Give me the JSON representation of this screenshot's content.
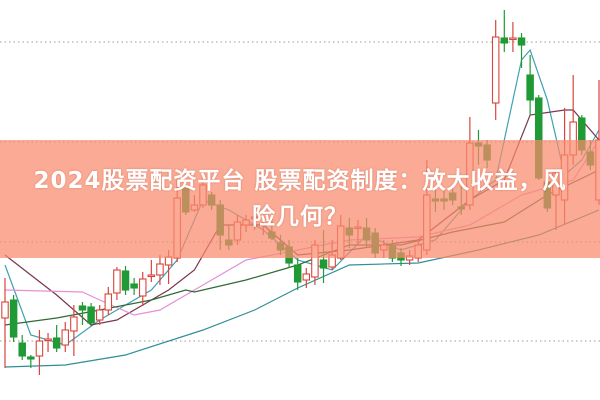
{
  "title": "2024股票配资平台 股票配资制度：放大收益，风险几何？",
  "title_lines": [
    "2024股票配资平台 股票配资制度：放大收益，风",
    "险几何？"
  ],
  "colors": {
    "up": "#d9443c",
    "down": "#1f9a35",
    "banner": "#f98a6c",
    "grid": "#9a9a9a"
  },
  "chart_data": {
    "type": "candlestick",
    "grid": "dotted-horizontal",
    "axes_visible": false,
    "ylim": [
      0,
      40
    ],
    "candles_ohlc": [
      [
        8.2,
        12.2,
        3.2,
        9.8
      ],
      [
        10.0,
        10.5,
        5.8,
        6.3
      ],
      [
        5.7,
        6.5,
        4.0,
        4.4
      ],
      [
        4.3,
        4.5,
        3.2,
        4.1
      ],
      [
        4.4,
        7.0,
        2.5,
        5.9
      ],
      [
        6.1,
        6.7,
        4.8,
        6.1
      ],
      [
        6.2,
        7.5,
        4.8,
        5.2
      ],
      [
        5.5,
        7.8,
        4.8,
        7.0
      ],
      [
        6.9,
        9.5,
        4.4,
        8.3
      ],
      [
        9.4,
        9.8,
        7.5,
        9.0
      ],
      [
        9.3,
        9.7,
        7.4,
        7.7
      ],
      [
        8.0,
        9.5,
        7.5,
        9.0
      ],
      [
        9.0,
        11.3,
        8.5,
        10.6
      ],
      [
        10.7,
        13.3,
        10.0,
        13.0
      ],
      [
        12.9,
        13.4,
        10.5,
        11.0
      ],
      [
        11.6,
        12.2,
        10.5,
        11.2
      ],
      [
        10.4,
        12.8,
        9.4,
        12.1
      ],
      [
        12.4,
        14.0,
        11.8,
        12.5
      ],
      [
        12.5,
        14.5,
        11.5,
        13.6
      ],
      [
        13.5,
        15.0,
        11.6,
        14.3
      ],
      [
        14.2,
        22.2,
        13.8,
        20.2
      ],
      [
        21.2,
        22.0,
        18.5,
        18.8
      ],
      [
        19.0,
        20.5,
        18.8,
        19.5
      ],
      [
        19.5,
        22.2,
        19.2,
        21.5
      ],
      [
        20.5,
        20.8,
        19.0,
        19.5
      ],
      [
        19.5,
        20.0,
        15.0,
        16.5
      ],
      [
        16.0,
        17.5,
        15.0,
        15.5
      ],
      [
        16.0,
        18.5,
        15.5,
        17.8
      ],
      [
        17.5,
        18.5,
        16.8,
        18.0
      ],
      [
        18.2,
        19.0,
        17.0,
        18.3
      ],
      [
        17.5,
        18.5,
        16.5,
        17.6
      ],
      [
        16.8,
        18.5,
        16.0,
        16.2
      ],
      [
        15.7,
        16.5,
        14.5,
        15.0
      ],
      [
        15.3,
        16.0,
        13.2,
        13.7
      ],
      [
        13.5,
        14.2,
        11.0,
        11.8
      ],
      [
        12.0,
        13.2,
        11.2,
        12.6
      ],
      [
        12.3,
        16.0,
        11.5,
        15.5
      ],
      [
        14.0,
        17.0,
        11.7,
        13.2
      ],
      [
        13.3,
        16.0,
        13.0,
        14.5
      ],
      [
        14.2,
        18.5,
        14.0,
        17.4
      ],
      [
        17.2,
        18.2,
        15.2,
        16.5
      ],
      [
        17.3,
        18.0,
        15.5,
        17.3
      ],
      [
        17.2,
        18.2,
        15.2,
        16.0
      ],
      [
        16.7,
        17.2,
        14.2,
        14.7
      ],
      [
        15.0,
        16.0,
        14.2,
        15.5
      ],
      [
        15.5,
        16.0,
        13.8,
        14.2
      ],
      [
        14.7,
        15.2,
        13.4,
        14.0
      ],
      [
        14.0,
        15.0,
        13.5,
        14.4
      ],
      [
        14.2,
        16.0,
        13.8,
        15.5
      ],
      [
        15.0,
        24.0,
        14.5,
        20.5
      ],
      [
        20.1,
        21.2,
        18.8,
        19.9
      ],
      [
        20.1,
        21.0,
        19.0,
        19.9
      ],
      [
        20.7,
        21.5,
        19.5,
        20.0
      ],
      [
        19.3,
        22.0,
        18.5,
        19.1
      ],
      [
        19.5,
        28.3,
        19.0,
        25.7
      ],
      [
        25.7,
        27.0,
        23.5,
        25.4
      ],
      [
        25.5,
        26.0,
        23.2,
        24.0
      ],
      [
        29.7,
        38.0,
        28.0,
        36.3
      ],
      [
        36.2,
        39.0,
        34.8,
        35.7
      ],
      [
        36.2,
        37.8,
        34.8,
        36.2
      ],
      [
        36.2,
        36.7,
        33.2,
        35.5
      ],
      [
        32.5,
        34.5,
        28.5,
        30.0
      ],
      [
        30.2,
        30.5,
        22.0,
        22.2
      ],
      [
        21.8,
        22.8,
        18.8,
        19.2
      ],
      [
        20.5,
        23.0,
        17.0,
        22.7
      ],
      [
        20.0,
        29.2,
        17.5,
        24.5
      ],
      [
        24.5,
        32.5,
        23.5,
        27.8
      ],
      [
        28.2,
        28.5,
        24.5,
        25.0
      ],
      [
        24.8,
        26.0,
        23.0,
        23.5
      ],
      [
        20.0,
        32.0,
        19.5,
        26.0
      ]
    ],
    "moving_averages": [
      {
        "color": "#3fa0b0",
        "points": [
          [
            0,
            13.5
          ],
          [
            3,
            6.5
          ],
          [
            7,
            5.5
          ],
          [
            11,
            8.0
          ],
          [
            17,
            11.0
          ],
          [
            20,
            14.0
          ],
          [
            23,
            20.0
          ],
          [
            26,
            19.0
          ],
          [
            30,
            17.0
          ],
          [
            34,
            14.0
          ],
          [
            38,
            13.0
          ],
          [
            42,
            16.5
          ],
          [
            46,
            15.0
          ],
          [
            50,
            16.0
          ],
          [
            54,
            20.0
          ],
          [
            57,
            22.0
          ],
          [
            60,
            34.0
          ],
          [
            61,
            35.0
          ],
          [
            63,
            30.0
          ],
          [
            65,
            22.5
          ],
          [
            67,
            24.0
          ],
          [
            69,
            27.0
          ]
        ]
      },
      {
        "color": "#7a3550",
        "points": [
          [
            0,
            14.5
          ],
          [
            6,
            10.5
          ],
          [
            10,
            7.5
          ],
          [
            13,
            8.0
          ],
          [
            19,
            11.0
          ],
          [
            22,
            13.0
          ],
          [
            25,
            17.5
          ],
          [
            30,
            17.5
          ],
          [
            34,
            14.5
          ],
          [
            40,
            15.0
          ],
          [
            48,
            16.0
          ],
          [
            54,
            20.0
          ],
          [
            58,
            22.0
          ],
          [
            61,
            28.5
          ],
          [
            65,
            29.0
          ],
          [
            66,
            29.0
          ],
          [
            69,
            26.0
          ]
        ]
      },
      {
        "color": "#e58fd8",
        "points": [
          [
            0,
            11.0
          ],
          [
            9,
            10.8
          ],
          [
            11,
            10.0
          ],
          [
            15,
            8.5
          ],
          [
            18,
            9.0
          ],
          [
            23,
            11.5
          ],
          [
            28,
            14.0
          ],
          [
            40,
            16.0
          ],
          [
            48,
            16.3
          ],
          [
            54,
            17.5
          ],
          [
            60,
            20.5
          ],
          [
            66,
            22.0
          ],
          [
            69,
            26.0
          ]
        ]
      },
      {
        "color": "#2f6a35",
        "points": [
          [
            0,
            7.5
          ],
          [
            6,
            8.2
          ],
          [
            11,
            9.0
          ],
          [
            17,
            10.0
          ],
          [
            21,
            11.0
          ],
          [
            22,
            10.8
          ],
          [
            28,
            12.0
          ],
          [
            34,
            13.5
          ],
          [
            40,
            15.5
          ],
          [
            46,
            15.5
          ],
          [
            52,
            16.8
          ],
          [
            58,
            17.8
          ],
          [
            63,
            20.5
          ],
          [
            69,
            23.0
          ]
        ]
      },
      {
        "color": "#2e8f94",
        "points": [
          [
            0,
            3.3
          ],
          [
            7,
            3.5
          ],
          [
            14,
            4.5
          ],
          [
            23,
            7.0
          ],
          [
            29,
            9.0
          ],
          [
            34,
            11.2
          ],
          [
            40,
            13.5
          ],
          [
            48,
            13.7
          ],
          [
            55,
            15.0
          ],
          [
            62,
            16.5
          ],
          [
            69,
            19.0
          ]
        ]
      }
    ],
    "gridlines_y": [
      35.8,
      25.8,
      15.8,
      5.9
    ]
  }
}
